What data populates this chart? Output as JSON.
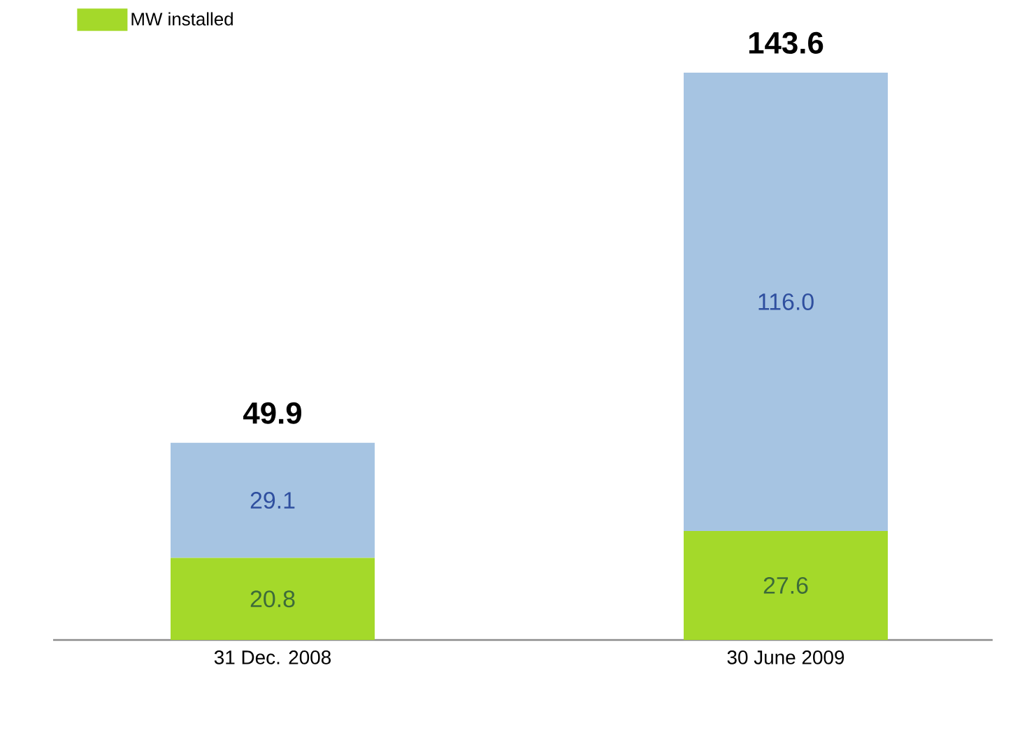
{
  "chart_data": {
    "type": "bar",
    "stacked": true,
    "categories": [
      "31 Dec. 2008",
      "30 June 2009"
    ],
    "series": [
      {
        "name": "MW installed",
        "color": "#a4d92a",
        "values": [
          20.8,
          27.6
        ],
        "value_labels": [
          "20.8",
          "27.6"
        ]
      },
      {
        "color": "#a6c4e2",
        "values": [
          29.1,
          116.0
        ],
        "value_labels": [
          "29.1",
          "116.0"
        ]
      }
    ],
    "totals": [
      "49.9",
      "143.6"
    ],
    "legend": "top left"
  }
}
